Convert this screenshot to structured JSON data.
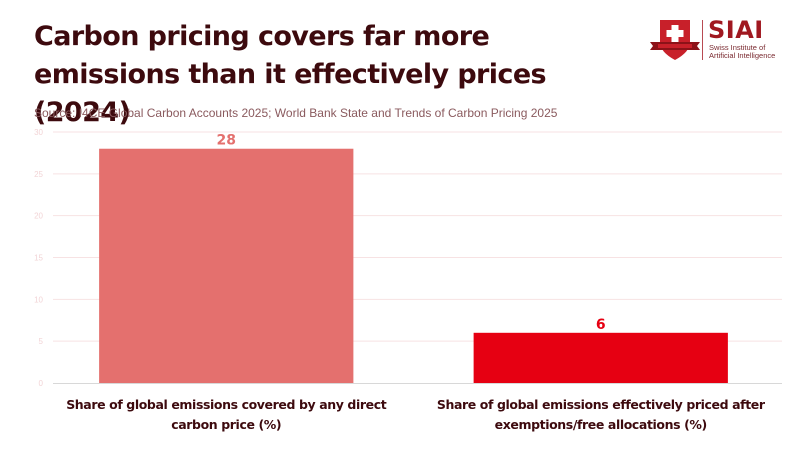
{
  "header": {
    "title": "Carbon pricing covers far more emissions than it effectively prices (2024)",
    "source": "Source: I4CE Global Carbon Accounts 2025; World Bank State and Trends of Carbon Pricing 2025"
  },
  "logo": {
    "icon": "swiss-cross-shield-icon",
    "name": "SIAI",
    "subtitle": "Swiss Institute of Artificial Intelligence",
    "brand_color": "#a01820"
  },
  "chart_data": {
    "type": "bar",
    "title": "Carbon pricing covers far more emissions than it effectively prices (2024)",
    "xlabel": "",
    "ylabel": "",
    "categories": [
      "Share of global emissions covered by any direct carbon price (%)",
      "Share of global emissions effectively priced after exemptions/free allocations (%)"
    ],
    "values": [
      28,
      6
    ],
    "data_labels": [
      "28",
      "6"
    ],
    "colors": [
      "#e4706e",
      "#e60012"
    ],
    "ylim": [
      0,
      30
    ],
    "yticks": [
      0,
      5,
      10,
      15,
      20,
      25,
      30
    ],
    "grid": true,
    "legend": "none"
  }
}
